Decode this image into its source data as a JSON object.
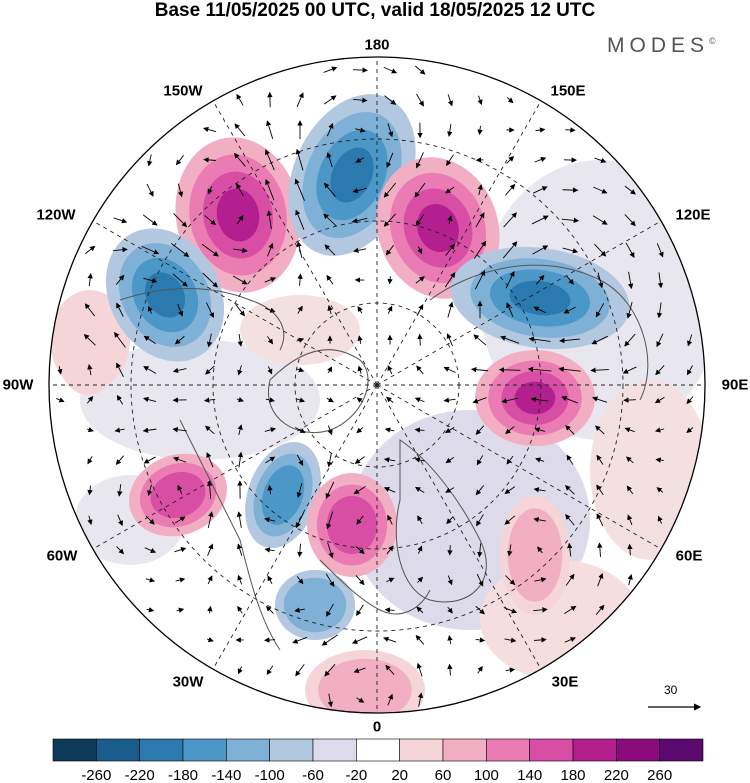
{
  "title": "Base 11/05/2025 00 UTC, valid 18/05/2025 12 UTC",
  "brand": {
    "name": "MODES",
    "mark": "©"
  },
  "longitude_labels": {
    "top": "180",
    "top_left": "150W",
    "top_right": "150E",
    "upper_left": "120W",
    "upper_right": "120E",
    "left": "90W",
    "right": "90E",
    "lower_left": "60W",
    "lower_right": "60E",
    "bottom_left": "30W",
    "bottom_right": "30E",
    "bottom": "0"
  },
  "vector_reference": {
    "value": "30"
  },
  "colorbar": {
    "tick_labels": [
      "-260",
      "-220",
      "-180",
      "-140",
      "-100",
      "-60",
      "-20",
      "20",
      "60",
      "100",
      "140",
      "180",
      "220",
      "260"
    ],
    "colors": [
      "#0e3a5a",
      "#1a5d8c",
      "#2a7ab0",
      "#4b97c8",
      "#7fb1d6",
      "#b2c8e0",
      "#dddbea",
      "#ffffff",
      "#f6d5d8",
      "#f2aec3",
      "#eb7cb3",
      "#d84ea5",
      "#b31f8e",
      "#8a0c7c",
      "#5a0a6e"
    ]
  },
  "map_colors": {
    "land_line": "#555555",
    "grid_line": "#222222",
    "arrow": "#000000"
  }
}
